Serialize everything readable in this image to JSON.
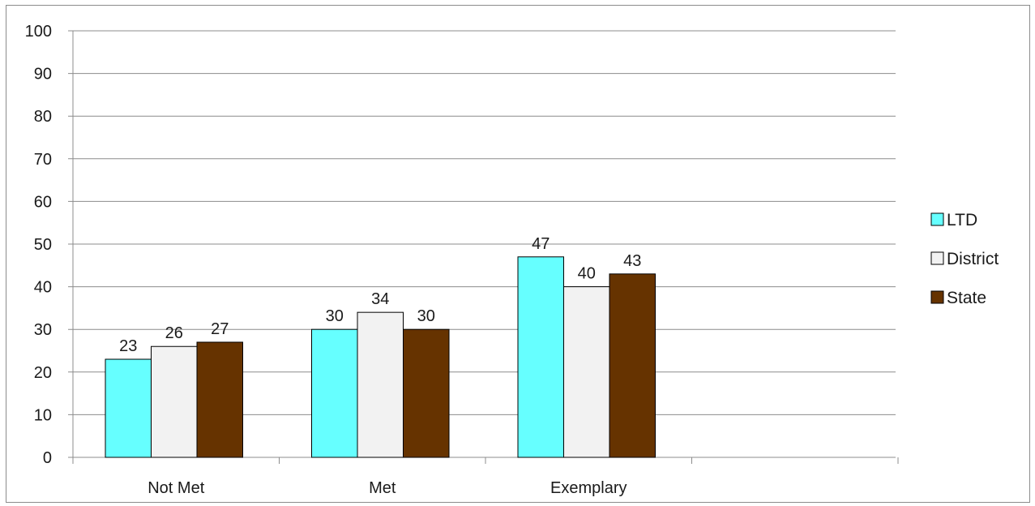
{
  "chart_data": {
    "type": "bar",
    "title": "",
    "xlabel": "",
    "ylabel": "",
    "categories": [
      "Not Met",
      "Met",
      "Exemplary"
    ],
    "series": [
      {
        "name": "LTD",
        "values": [
          23,
          30,
          47
        ],
        "color": "#66ffff"
      },
      {
        "name": "District",
        "values": [
          26,
          34,
          40
        ],
        "color": "#f2f2f2"
      },
      {
        "name": "State",
        "values": [
          27,
          30,
          43
        ],
        "color": "#663300"
      }
    ],
    "ylim": [
      0,
      100
    ],
    "yticks": [
      "0",
      "10",
      "20",
      "30",
      "40",
      "50",
      "60",
      "70",
      "80",
      "90",
      "100"
    ],
    "grid": true,
    "show_data_labels": true,
    "legend_position": "right"
  }
}
